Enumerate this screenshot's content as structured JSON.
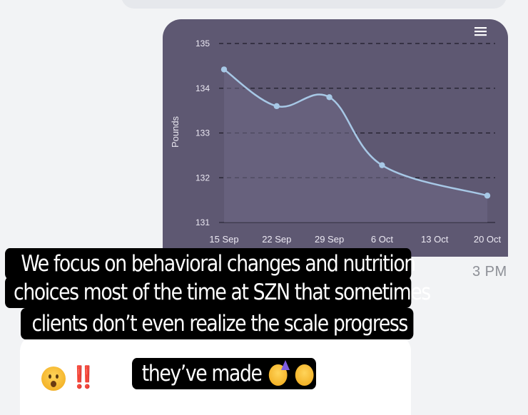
{
  "chart_data": {
    "type": "line",
    "ylabel": "Pounds",
    "xlabel": "",
    "categories": [
      "15 Sep",
      "22 Sep",
      "29 Sep",
      "6 Oct",
      "13 Oct",
      "20 Oct"
    ],
    "yticks": [
      "135",
      "134",
      "133",
      "132",
      "131"
    ],
    "ylim": [
      131,
      135
    ],
    "series": [
      {
        "points": [
          {
            "x": 0,
            "y": 134.42
          },
          {
            "x": 1,
            "y": 133.6
          },
          {
            "x": 2,
            "y": 133.8
          },
          {
            "x": 3,
            "y": 132.28
          },
          {
            "x": 5,
            "y": 131.6
          }
        ]
      }
    ],
    "grid": "dashed-horizontal",
    "line_color": "#a7c8e6"
  },
  "menu_icon": "hamburger-menu-icon",
  "timestamp_fragment": "3 PM",
  "caption_lines": [
    "We focus on behavioral changes and nutrition",
    "choices most of the time at SZN that sometimes",
    "clients don’t even realize the scale progress",
    "they’ve made"
  ],
  "reply": {
    "emoji_icon": "astonished-face-icon",
    "text": "‼️"
  },
  "caption_emojis": [
    "partying-face-icon",
    "astonished-face-icon"
  ]
}
